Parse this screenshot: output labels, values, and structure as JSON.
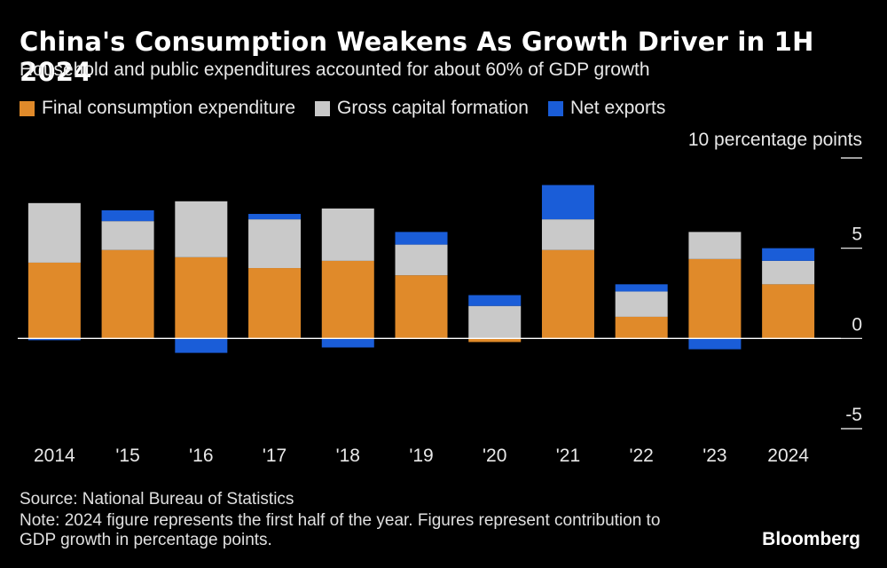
{
  "header": {
    "title": "China's Consumption Weakens As Growth Driver in 1H 2024",
    "subtitle": "Household and public expenditures accounted for about 60% of GDP growth"
  },
  "footer": {
    "source": "Source: National Bureau of Statistics",
    "note": "Note: 2024 figure represents the first half of the year. Figures represent contribution to GDP growth in percentage points.",
    "brand": "Bloomberg"
  },
  "chart_data": {
    "type": "bar",
    "stacked": true,
    "title": "China's Consumption Weakens As Growth Driver in 1H 2024",
    "subtitle": "Household and public expenditures accounted for about 60% of GDP growth",
    "ylabel": "10 percentage points",
    "ylim": [
      -5,
      10
    ],
    "yticks": [
      {
        "value": 10,
        "label": ""
      },
      {
        "value": 5,
        "label": "5"
      },
      {
        "value": 0,
        "label": "0"
      },
      {
        "value": -5,
        "label": "-5"
      }
    ],
    "legend_position": "top-left",
    "categories": [
      "2014",
      "'15",
      "'16",
      "'17",
      "'18",
      "'19",
      "'20",
      "'21",
      "'22",
      "'23",
      "2024"
    ],
    "series": [
      {
        "name": "Final consumption expenditure",
        "color": "#e08a2a",
        "values": [
          4.2,
          4.9,
          4.5,
          3.9,
          4.3,
          3.5,
          -0.2,
          4.9,
          1.2,
          4.4,
          3.0
        ]
      },
      {
        "name": "Gross capital formation",
        "color": "#c9c9c9",
        "values": [
          3.3,
          1.6,
          3.1,
          2.7,
          2.9,
          1.7,
          1.8,
          1.7,
          1.4,
          1.5,
          1.3
        ]
      },
      {
        "name": "Net exports",
        "color": "#1a5dd8",
        "values": [
          -0.1,
          0.6,
          -0.8,
          0.3,
          -0.5,
          0.7,
          0.6,
          1.9,
          0.4,
          -0.6,
          0.7
        ]
      }
    ]
  }
}
